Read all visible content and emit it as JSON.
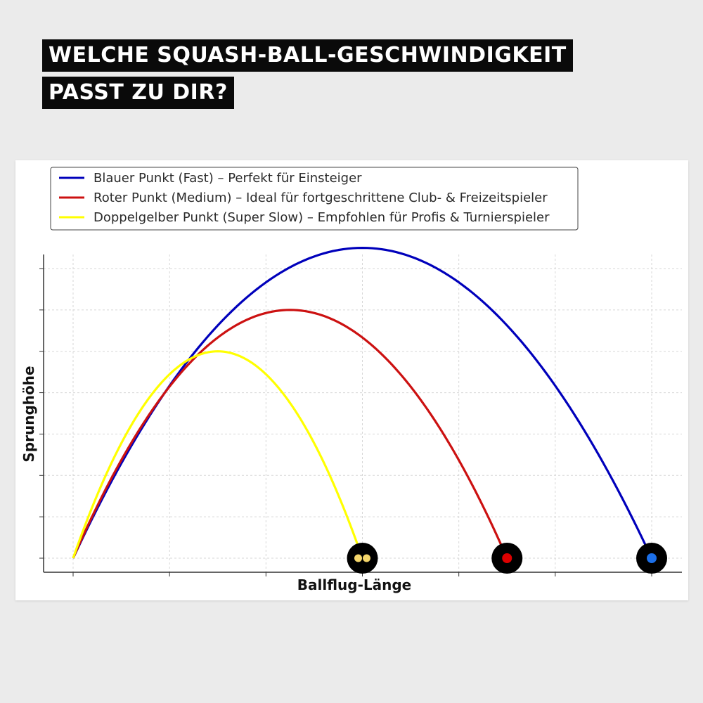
{
  "headline": {
    "line1": "WELCHE SQUASH-BALL-GESCHWINDIGKEIT",
    "line2": "PASST ZU DIR?"
  },
  "chart_data": {
    "type": "line",
    "xlabel": "Ballflug-Länge",
    "ylabel": "Sprunghöhe",
    "xlim": [
      0,
      6.3
    ],
    "ylim": [
      -0.8,
      7.8
    ],
    "grid": true,
    "legend_position": "top-left",
    "series": [
      {
        "name": "Blauer Punkt (Fast) – Perfekt für Einsteiger",
        "color": "#0000bb",
        "peak": [
          3,
          7.5
        ],
        "end": [
          6,
          0
        ],
        "x": [
          0,
          0.5,
          1,
          1.5,
          2,
          2.5,
          3,
          3.5,
          4,
          4.5,
          5,
          5.5,
          6
        ],
        "y": [
          0,
          2.08,
          4.17,
          5.73,
          6.67,
          7.29,
          7.5,
          7.29,
          6.67,
          5.73,
          4.17,
          2.08,
          0
        ],
        "marker": {
          "style": "single-dot",
          "dot_color": "#1c6fe8"
        }
      },
      {
        "name": "Roter Punkt (Medium) – Ideal für fortgeschrittene Club- & Freizeitspieler",
        "color": "#cc1111",
        "peak": [
          2.25,
          6
        ],
        "end": [
          4.5,
          0
        ],
        "x": [
          0,
          0.5,
          1,
          1.5,
          2,
          2.25,
          2.5,
          3,
          3.5,
          4,
          4.5
        ],
        "y": [
          0,
          2.07,
          3.95,
          5.26,
          5.93,
          6.0,
          5.93,
          5.26,
          3.95,
          2.07,
          0
        ],
        "marker": {
          "style": "single-dot",
          "dot_color": "#dd0000"
        }
      },
      {
        "name": "Doppelgelber Punkt (Super Slow) – Empfohlen für Profis & Turnierspieler",
        "color": "#ffff00",
        "peak": [
          1.5,
          5
        ],
        "end": [
          3,
          0
        ],
        "x": [
          0,
          0.5,
          1,
          1.5,
          2,
          2.5,
          3
        ],
        "y": [
          0,
          2.78,
          4.44,
          5.0,
          4.44,
          2.78,
          0
        ],
        "marker": {
          "style": "double-dot",
          "dot_color": "#f5d66b"
        }
      }
    ]
  }
}
